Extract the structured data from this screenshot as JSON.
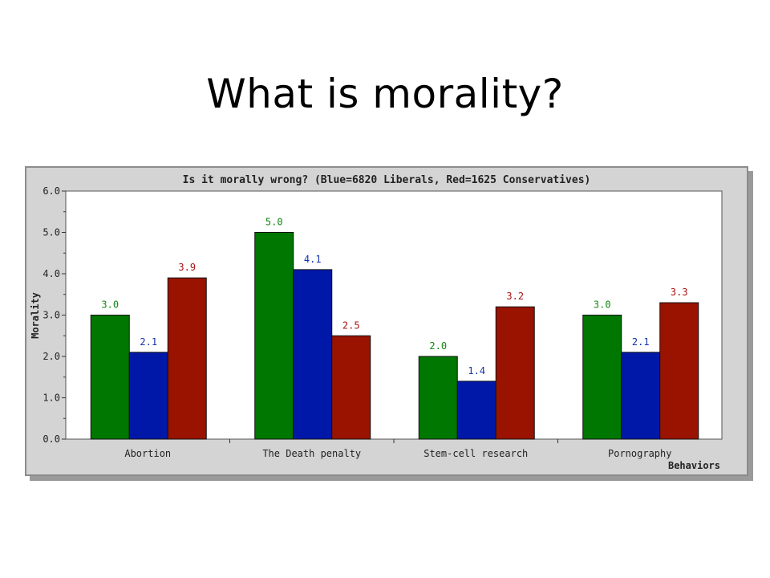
{
  "slide": {
    "title": "What is morality?"
  },
  "colors": {
    "panel_bg": "#d4d4d4",
    "plot_bg": "#ffffff",
    "series": [
      "#007700",
      "#0018a8",
      "#9a1200"
    ],
    "label_colors": [
      "#118811",
      "#1133aa",
      "#aa1111"
    ]
  },
  "chart_data": {
    "type": "bar",
    "title": "Is it morally wrong? (Blue=6820 Liberals, Red=1625 Conservatives)",
    "xlabel": "Behaviors",
    "ylabel": "Morality",
    "ylim": [
      0,
      6
    ],
    "y_ticks": [
      "0.0",
      "1.0",
      "2.0",
      "3.0",
      "4.0",
      "5.0",
      "6.0"
    ],
    "categories": [
      "Abortion",
      "The Death penalty",
      "Stem-cell research",
      "Pornography"
    ],
    "series": [
      {
        "values": [
          3.0,
          5.0,
          2.0,
          3.0
        ],
        "labels": [
          "3.0",
          "5.0",
          "2.0",
          "3.0"
        ]
      },
      {
        "values": [
          2.1,
          4.1,
          1.4,
          2.1
        ],
        "labels": [
          "2.1",
          "4.1",
          "1.4",
          "2.1"
        ]
      },
      {
        "values": [
          3.9,
          2.5,
          3.2,
          3.3
        ],
        "labels": [
          "3.9",
          "2.5",
          "3.2",
          "3.3"
        ]
      }
    ],
    "grid": false,
    "legend": "none"
  }
}
